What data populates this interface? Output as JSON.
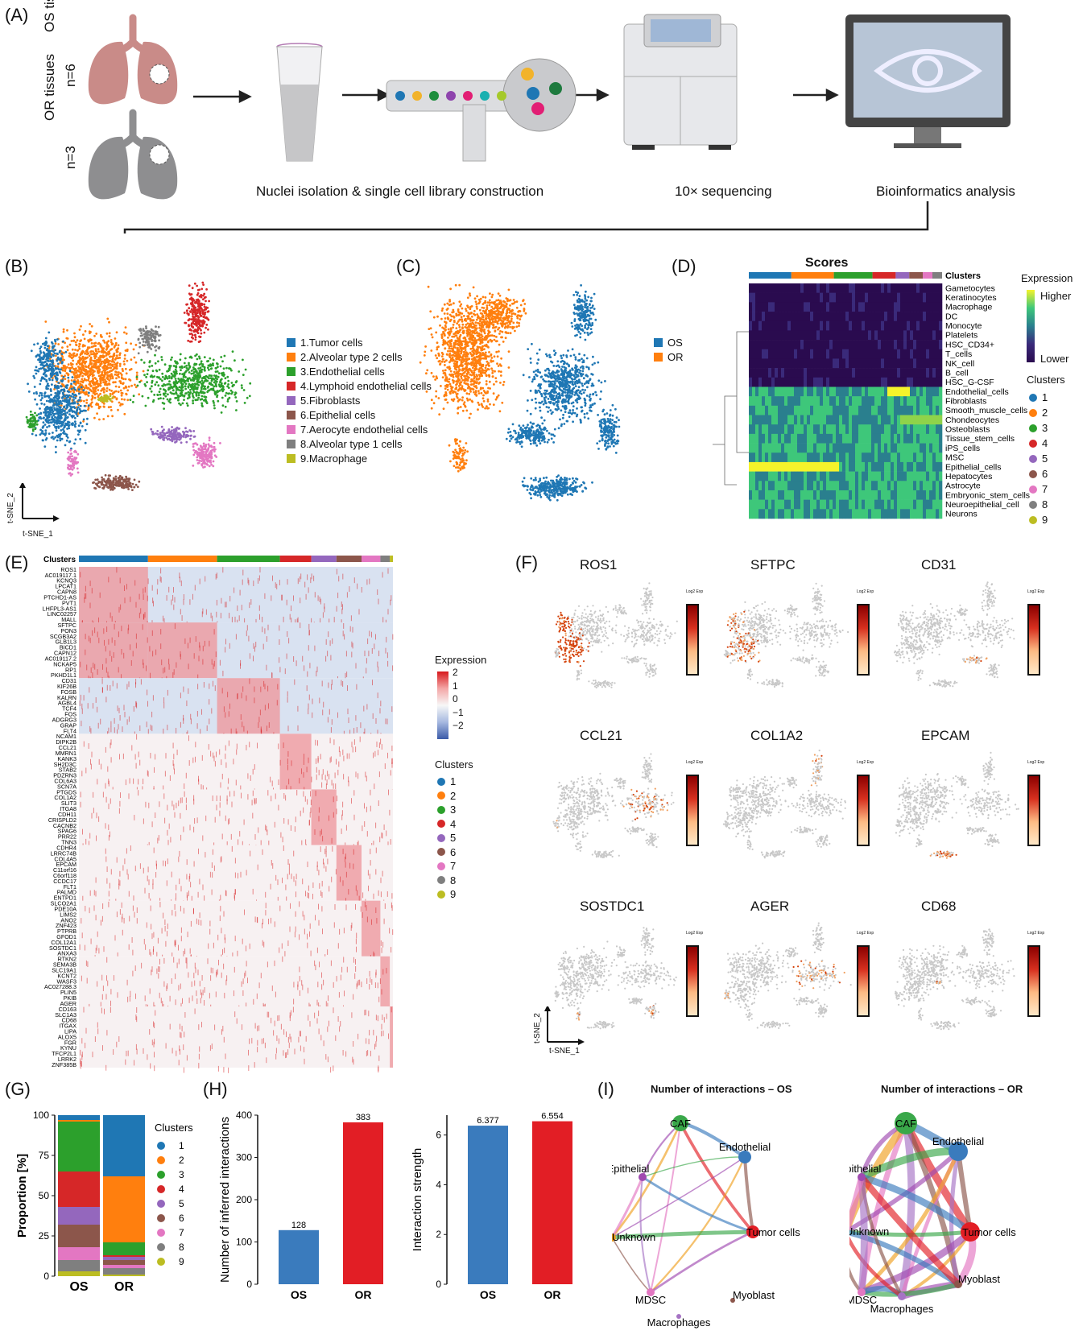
{
  "panels": {
    "A": "(A)",
    "B": "(B)",
    "C": "(C)",
    "D": "(D)",
    "E": "(E)",
    "F": "(F)",
    "G": "(G)",
    "H": "(H)",
    "I": "(I)"
  },
  "workflow": {
    "os_label": "OS tissues",
    "os_n": "n=6",
    "or_label": "OR tissues",
    "or_n": "n=3",
    "step1": "Nuclei isolation & single cell library construction",
    "step2": "10× sequencing",
    "step3": "Bioinformatics analysis"
  },
  "tsne": {
    "x": "t-SNE_1",
    "y": "t-SNE_2"
  },
  "panel_b_legend": [
    {
      "label": "1.Tumor cells",
      "color": "#1f77b4"
    },
    {
      "label": "2.Alveolar type 2 cells",
      "color": "#ff7f0e"
    },
    {
      "label": "3.Endothelial cells",
      "color": "#2ca02c"
    },
    {
      "label": "4.Lymphoid endothelial cells",
      "color": "#d62728"
    },
    {
      "label": "5.Fibroblasts",
      "color": "#9467bd"
    },
    {
      "label": "6.Epithelial cells",
      "color": "#8c564b"
    },
    {
      "label": "7.Aerocyte endothelial cells",
      "color": "#e377c2"
    },
    {
      "label": "8.Alveolar type 1 cells",
      "color": "#7f7f7f"
    },
    {
      "label": "9.Macrophage",
      "color": "#bcbd22"
    }
  ],
  "panel_c_legend": [
    {
      "label": "OS",
      "color": "#1f77b4"
    },
    {
      "label": "OR",
      "color": "#ff7f0e"
    }
  ],
  "panel_d": {
    "title": "Scores",
    "clusters_label": "Clusters",
    "rows": [
      "Gametocytes",
      "Keratinocytes",
      "Macrophage",
      "DC",
      "Monocyte",
      "Platelets",
      "HSC_CD34+",
      "T_cells",
      "NK_cell",
      "B_cell",
      "HSC_G-CSF",
      "Endothelial_cells",
      "Fibroblasts",
      "Smooth_muscle_cells",
      "Chondeocytes",
      "Osteoblasts",
      "Tissue_stem_cells",
      "iPS_cells",
      "MSC",
      "Epithelial_cells",
      "Hepatocytes",
      "Astrocyte",
      "Embryonic_stem_cells",
      "Neuroepithelial_cell",
      "Neurons"
    ],
    "expression_label": "Expression",
    "higher": "Higher",
    "lower": "Lower",
    "clusters_legend_title": "Clusters",
    "cluster_ids": [
      "1",
      "2",
      "3",
      "4",
      "5",
      "6",
      "7",
      "8",
      "9"
    ]
  },
  "cluster_colors": [
    "#1f77b4",
    "#ff7f0e",
    "#2ca02c",
    "#d62728",
    "#9467bd",
    "#8c564b",
    "#e377c2",
    "#7f7f7f",
    "#bcbd22"
  ],
  "panel_e": {
    "clusters_label": "Clusters",
    "genes": [
      "ROS1",
      "AC019117.1",
      "KCNQ3",
      "LPCAT1",
      "CAPN8",
      "PTCHD1-AS",
      "PVT1",
      "LHFPL3-AS1",
      "LINC02257",
      "MALL",
      "SFTPC",
      "PON3",
      "SCGB3A2",
      "GLB1L3",
      "BICD1",
      "CAPN12",
      "AC019117.2",
      "NCKAP5",
      "RP1",
      "PKHD1L1",
      "CD31",
      "KIF26B",
      "FOSB",
      "KALRN",
      "AGBL4",
      "TCF4",
      "FOS",
      "ADGRG3",
      "GRAP",
      "FLT4",
      "NCAM1",
      "DIPK2B",
      "CCL21",
      "MMRN1",
      "KANK3",
      "SH2D3C",
      "STAB2",
      "PDZRN3",
      "COL6A3",
      "SCN7A",
      "PTGDS",
      "COL1A2",
      "SLIT3",
      "ITGA8",
      "CDH11",
      "CRISPLD2",
      "CACNB2",
      "SPAG6",
      "PRR22",
      "TNN3",
      "CDHR4",
      "LRRC74B",
      "COL4A5",
      "EPCAM",
      "C11orf16",
      "C6orf118",
      "CCDC17",
      "FLT1",
      "PALMD",
      "ENTPD1",
      "SLCO2A1",
      "PDE10A",
      "LIMS2",
      "ANO2",
      "ZNF423",
      "PTPRB",
      "GFOD1",
      "COL12A1",
      "SOSTDC1",
      "ANXA3",
      "RTKN2",
      "SEMA3B",
      "SLC19A1",
      "KCNT2",
      "WASF3",
      "AC027288.3",
      "PLIN5",
      "PKIB",
      "AGER",
      "CD163",
      "SLC1A3",
      "CD68",
      "ITGAX",
      "LIPA",
      "ALOX5",
      "FGR",
      "KYNU",
      "TFCP2L1",
      "LRRK2",
      "ZNF385B"
    ],
    "expression_label": "Expression",
    "ticks": [
      "2",
      "1",
      "0",
      "−1",
      "−2"
    ],
    "clusters_legend_title": "Clusters",
    "cluster_ids": [
      "1",
      "2",
      "3",
      "4",
      "5",
      "6",
      "7",
      "8",
      "9"
    ]
  },
  "panel_f": {
    "genes": [
      "ROS1",
      "SFTPC",
      "CD31",
      "CCL21",
      "COL1A2",
      "EPCAM",
      "SOSTDC1",
      "AGER",
      "CD68"
    ],
    "scale_title": "Log2 Exp"
  },
  "chart_data": [
    {
      "type": "bar",
      "panel": "G",
      "stacked": true,
      "categories": [
        "OS",
        "OR"
      ],
      "ylabel": "Proportion [%]",
      "ylim": [
        0,
        100
      ],
      "yticks": [
        "0",
        "25",
        "50",
        "75",
        "100"
      ],
      "legend_title": "Clusters",
      "series": [
        {
          "name": "1",
          "color": "#1f77b4",
          "values": [
            3,
            38
          ]
        },
        {
          "name": "2",
          "color": "#ff7f0e",
          "values": [
            1,
            41
          ]
        },
        {
          "name": "3",
          "color": "#2ca02c",
          "values": [
            31,
            8
          ]
        },
        {
          "name": "4",
          "color": "#d62728",
          "values": [
            22,
            1
          ]
        },
        {
          "name": "5",
          "color": "#9467bd",
          "values": [
            11,
            2
          ]
        },
        {
          "name": "6",
          "color": "#8c564b",
          "values": [
            14,
            3
          ]
        },
        {
          "name": "7",
          "color": "#e377c2",
          "values": [
            8,
            2
          ]
        },
        {
          "name": "8",
          "color": "#7f7f7f",
          "values": [
            7,
            4
          ]
        },
        {
          "name": "9",
          "color": "#bcbd22",
          "values": [
            3,
            1
          ]
        }
      ]
    },
    {
      "type": "bar",
      "panel": "H-left",
      "categories": [
        "OS",
        "OR"
      ],
      "values": [
        128,
        383
      ],
      "labels": [
        "128",
        "383"
      ],
      "colors": [
        "#3a7bbd",
        "#e21e25"
      ],
      "ylabel": "Number of inferred interactions",
      "ylim": [
        0,
        400
      ],
      "yticks": [
        "0",
        "100",
        "200",
        "300",
        "400"
      ]
    },
    {
      "type": "bar",
      "panel": "H-right",
      "categories": [
        "OS",
        "OR"
      ],
      "values": [
        6.377,
        6.554
      ],
      "labels": [
        "6.377",
        "6.554"
      ],
      "colors": [
        "#3a7bbd",
        "#e21e25"
      ],
      "ylabel": "Interaction strength",
      "ylim": [
        0,
        6.8
      ],
      "yticks": [
        "0",
        "2",
        "4",
        "6"
      ]
    }
  ],
  "panel_i": {
    "os_title": "Number of interactions – OS",
    "or_title": "Number of interactions – OR",
    "nodes": [
      "CAF",
      "Endothelial",
      "Tumor cells",
      "Myoblast",
      "Macrophages",
      "MDSC",
      "Unknown",
      "Epithelial"
    ]
  }
}
